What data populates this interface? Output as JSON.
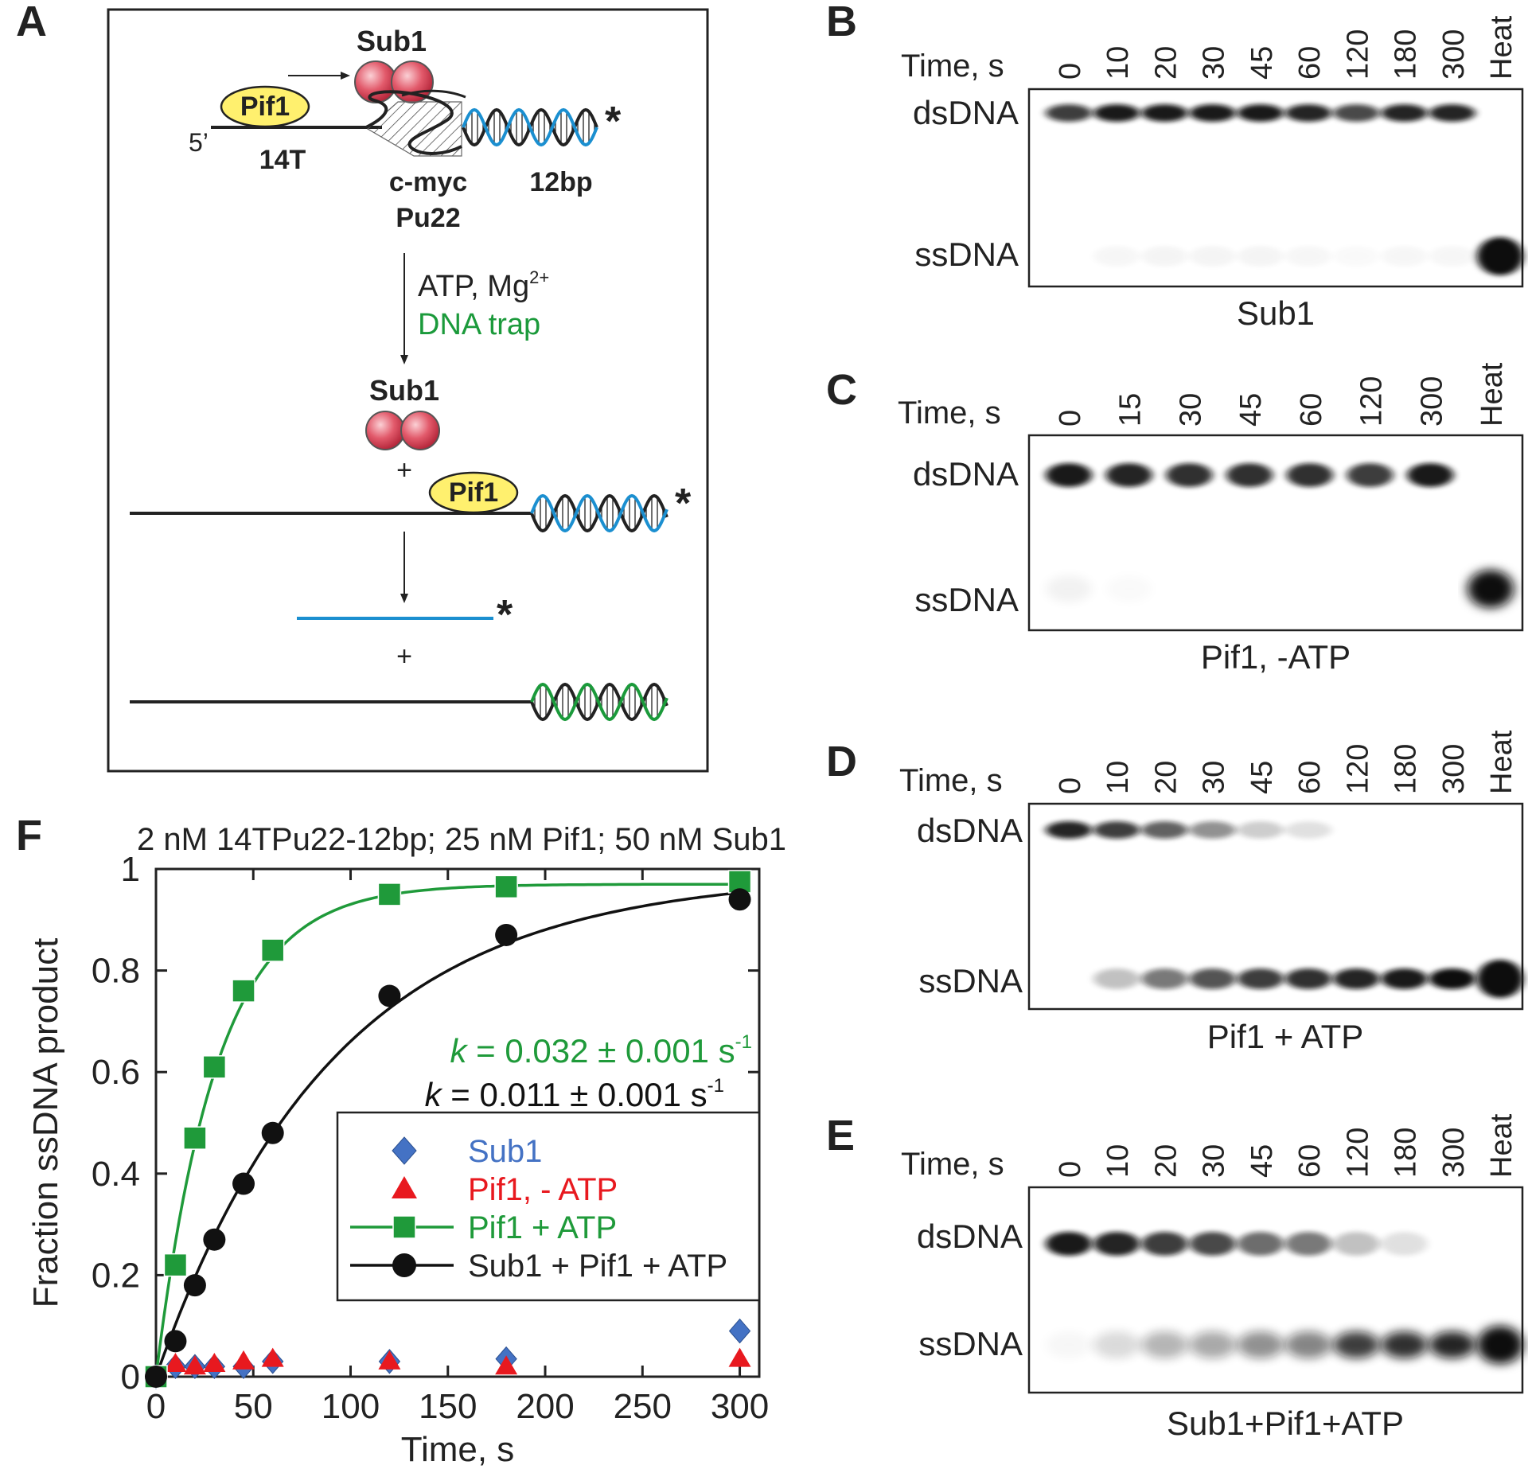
{
  "panel_letters": {
    "a": "A",
    "b": "B",
    "c": "C",
    "d": "D",
    "e": "E",
    "f": "F"
  },
  "schematic": {
    "sub1_top": "Sub1",
    "pif1_top": "Pif1",
    "five_prime": "5’",
    "t14": "14T",
    "cmyc": "c-myc",
    "pu22": "Pu22",
    "bp12": "12bp",
    "star": "*",
    "atp_mg": "ATP, Mg",
    "mg_sup": "2+",
    "dna_trap": "DNA trap",
    "sub1_mid": "Sub1",
    "plus1": "+",
    "pif1_mid": "Pif1",
    "plus2": "+",
    "colors": {
      "sub1": "#d9475a",
      "pif1": "#ffef6b",
      "blue": "#1b8fd0",
      "green": "#1b9a3b"
    }
  },
  "gels": {
    "time_label": "Time, s",
    "ds_label": "dsDNA",
    "ss_label": "ssDNA",
    "b": {
      "lanes": [
        "0",
        "10",
        "20",
        "30",
        "45",
        "60",
        "120",
        "180",
        "300",
        "Heat"
      ],
      "caption": "Sub1"
    },
    "c": {
      "lanes": [
        "0",
        "15",
        "30",
        "45",
        "60",
        "120",
        "300",
        "Heat"
      ],
      "caption": "Pif1, -ATP"
    },
    "d": {
      "lanes": [
        "0",
        "10",
        "20",
        "30",
        "45",
        "60",
        "120",
        "180",
        "300",
        "Heat"
      ],
      "caption": "Pif1 + ATP"
    },
    "e": {
      "lanes": [
        "0",
        "10",
        "20",
        "30",
        "45",
        "60",
        "120",
        "180",
        "300",
        "Heat"
      ],
      "caption": "Sub1+Pif1+ATP"
    }
  },
  "chart_data": {
    "type": "scatter",
    "title": "2 nM 14TPu22-12bp; 25 nM Pif1; 50 nM Sub1",
    "xlabel": "Time, s",
    "ylabel": "Fraction ssDNA product",
    "xlim": [
      0,
      310
    ],
    "ylim": [
      0,
      1
    ],
    "xticks": [
      0,
      50,
      100,
      150,
      200,
      250,
      300
    ],
    "yticks": [
      0,
      0.2,
      0.4,
      0.6,
      0.8,
      1
    ],
    "ytick_labels": [
      "0",
      "0.2",
      "0.4",
      "0.6",
      "0.8",
      "1"
    ],
    "series": [
      {
        "name": "Sub1",
        "marker": "diamond",
        "color": "#4472c4",
        "line": false,
        "x": [
          0,
          10,
          20,
          30,
          45,
          60,
          120,
          180,
          300
        ],
        "y": [
          0,
          0.02,
          0.02,
          0.02,
          0.02,
          0.03,
          0.03,
          0.035,
          0.09
        ]
      },
      {
        "name": "Pif1, - ATP",
        "marker": "triangle",
        "color": "#e8191f",
        "line": false,
        "x": [
          0,
          10,
          20,
          30,
          45,
          60,
          120,
          180,
          300
        ],
        "y": [
          0,
          0.025,
          0.02,
          0.025,
          0.03,
          0.035,
          0.03,
          0.02,
          0.035
        ]
      },
      {
        "name": "Pif1 + ATP",
        "marker": "square",
        "color": "#1f9a3a",
        "line": true,
        "k": 0.032,
        "amp": 0.97,
        "x": [
          0,
          10,
          20,
          30,
          45,
          60,
          120,
          180,
          300
        ],
        "y": [
          0,
          0.22,
          0.47,
          0.61,
          0.76,
          0.84,
          0.95,
          0.965,
          0.975
        ]
      },
      {
        "name": "Sub1 + Pif1 + ATP",
        "marker": "circle",
        "color": "#111111",
        "line": true,
        "k": 0.011,
        "amp": 0.99,
        "x": [
          0,
          10,
          20,
          30,
          45,
          60,
          120,
          180,
          300
        ],
        "y": [
          0,
          0.07,
          0.18,
          0.27,
          0.38,
          0.48,
          0.75,
          0.87,
          0.94
        ]
      }
    ],
    "annotations": [
      {
        "italic": "k",
        "text": " = 0.032 ± 0.001 s",
        "sup": "-1",
        "color": "#1f9a3a"
      },
      {
        "italic": "k",
        "text": " = 0.011 ± 0.001 s",
        "sup": "-1",
        "color": "#111111"
      }
    ]
  }
}
